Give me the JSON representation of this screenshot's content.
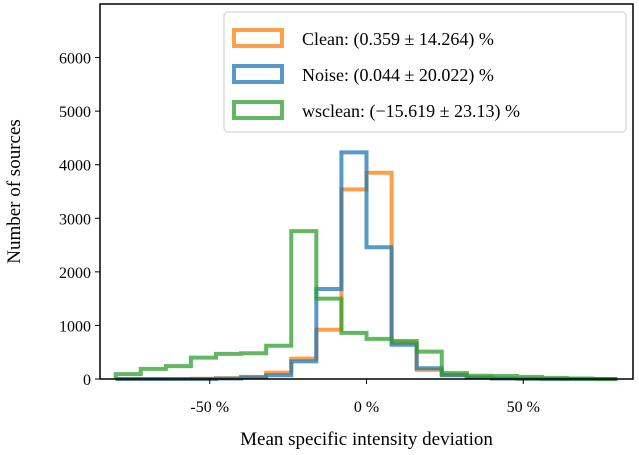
{
  "chart_data": {
    "type": "histogram",
    "xlabel": "Mean specific intensity deviation",
    "ylabel": "Number of sources",
    "xlim": [
      -85,
      85
    ],
    "ylim": [
      0,
      7000
    ],
    "x_ticks": [
      -50,
      0,
      50
    ],
    "x_tick_labels": [
      "-50 %",
      "0 %",
      "50 %"
    ],
    "y_ticks": [
      0,
      1000,
      2000,
      3000,
      4000,
      5000,
      6000
    ],
    "y_tick_labels": [
      "0",
      "1000",
      "2000",
      "3000",
      "4000",
      "5000",
      "6000"
    ],
    "legend_position": "upper-right",
    "bin_edges": [
      -80,
      -72,
      -64,
      -56,
      -48,
      -40,
      -32,
      -24,
      -16,
      -8,
      0,
      8,
      16,
      24,
      32,
      40,
      48,
      56,
      64,
      72,
      80
    ],
    "series": [
      {
        "name": "Clean",
        "label": "Clean: (0.359 ± 14.264) %",
        "color": "#ff7f0e",
        "counts": [
          0,
          0,
          0,
          5,
          15,
          40,
          120,
          380,
          920,
          3540,
          3850,
          680,
          170,
          80,
          30,
          10,
          5,
          0,
          0,
          0
        ]
      },
      {
        "name": "Noise",
        "label": "Noise: (0.044 ± 20.022) %",
        "color": "#1f77b4",
        "counts": [
          0,
          0,
          0,
          0,
          10,
          30,
          70,
          330,
          1680,
          4230,
          2460,
          640,
          200,
          70,
          25,
          10,
          5,
          0,
          0,
          0
        ]
      },
      {
        "name": "wsclean",
        "label": "wsclean: (−15.619 ± 23.13) %",
        "color": "#2ca02c",
        "counts": [
          90,
          190,
          240,
          400,
          470,
          480,
          620,
          2760,
          1500,
          860,
          750,
          710,
          510,
          110,
          60,
          55,
          40,
          20,
          10,
          0
        ]
      }
    ]
  }
}
